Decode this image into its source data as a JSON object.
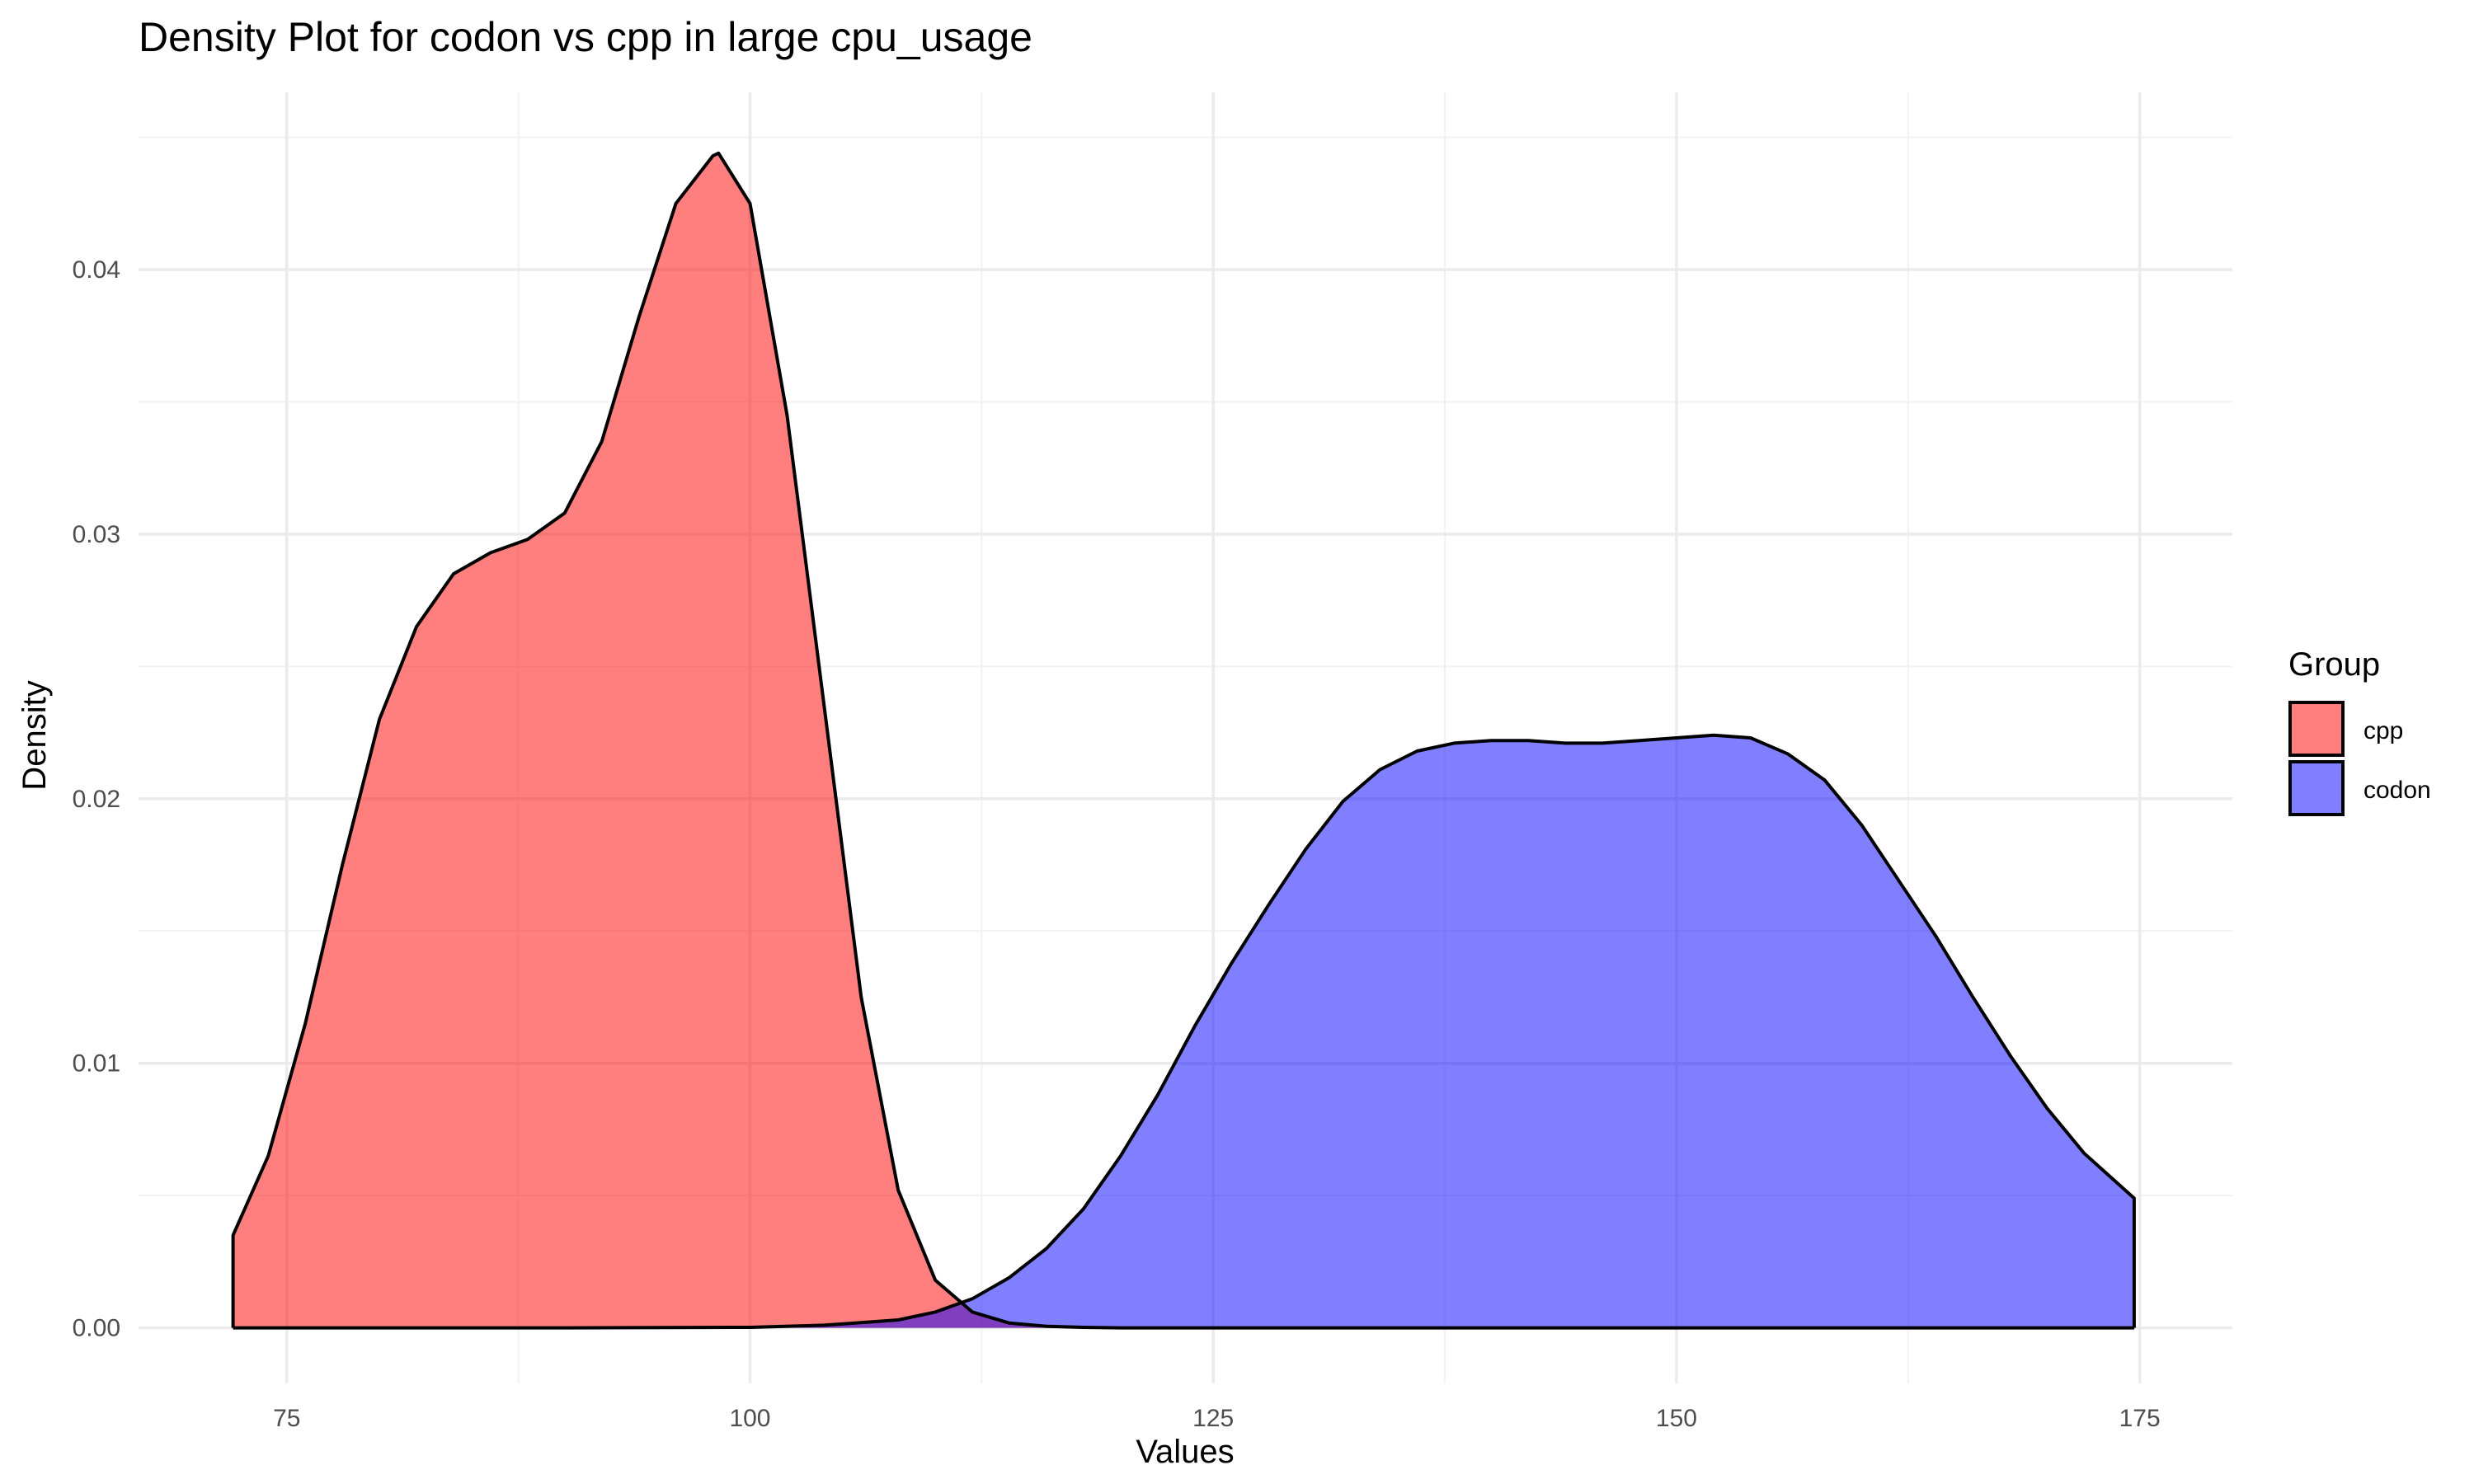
{
  "chart_data": {
    "type": "area",
    "title": "Density Plot for codon vs cpp in large cpu_usage",
    "xlabel": "Values",
    "ylabel": "Density",
    "xlim": [
      67,
      180
    ],
    "ylim": [
      -0.0021,
      0.0467
    ],
    "x_ticks": [
      75,
      100,
      125,
      150,
      175
    ],
    "y_ticks": [
      0.0,
      0.01,
      0.02,
      0.03,
      0.04
    ],
    "x_tick_labels": [
      "75",
      "100",
      "125",
      "150",
      "175"
    ],
    "y_tick_labels": [
      "0.00",
      "0.01",
      "0.02",
      "0.03",
      "0.04"
    ],
    "grid": true,
    "legend": {
      "title": "Group",
      "placement": "right"
    },
    "series": [
      {
        "name": "cpp",
        "color": "#ff0000",
        "fill_opacity": 0.5,
        "x": [
          72.1,
          74,
          76,
          78,
          80,
          82,
          84,
          86,
          88,
          90,
          92,
          94,
          96,
          98,
          98.3,
          100,
          102,
          104,
          106,
          108,
          110,
          112,
          114,
          116,
          118,
          120,
          125,
          130,
          140,
          150,
          160,
          174.7
        ],
        "values": [
          0.0035,
          0.0065,
          0.0115,
          0.0175,
          0.023,
          0.0265,
          0.0285,
          0.0293,
          0.0298,
          0.0308,
          0.0335,
          0.0382,
          0.0425,
          0.0443,
          0.0444,
          0.0425,
          0.0345,
          0.0235,
          0.0125,
          0.0052,
          0.0018,
          0.0006,
          0.00018,
          6e-05,
          2e-05,
          0.0,
          0.0,
          0.0,
          0.0,
          0.0,
          0.0,
          0.0
        ]
      },
      {
        "name": "codon",
        "color": "#0000ff",
        "fill_opacity": 0.5,
        "x": [
          72.1,
          90,
          100,
          104,
          108,
          110,
          112,
          114,
          116,
          118,
          120,
          122,
          124,
          126,
          128,
          130,
          132,
          134,
          136,
          138,
          140,
          142,
          144,
          146,
          148,
          150,
          152,
          154,
          156,
          158,
          160,
          162,
          164,
          166,
          168,
          170,
          172,
          174.7
        ],
        "values": [
          0.0,
          0.0,
          2e-05,
          0.0001,
          0.0003,
          0.0006,
          0.0011,
          0.0019,
          0.003,
          0.0045,
          0.0065,
          0.0088,
          0.0114,
          0.0138,
          0.016,
          0.0181,
          0.0199,
          0.0211,
          0.0218,
          0.0221,
          0.0222,
          0.0222,
          0.0221,
          0.0221,
          0.0222,
          0.0223,
          0.0224,
          0.0223,
          0.0217,
          0.0207,
          0.019,
          0.0169,
          0.0148,
          0.0125,
          0.0103,
          0.0083,
          0.0066,
          0.0049
        ]
      }
    ]
  }
}
